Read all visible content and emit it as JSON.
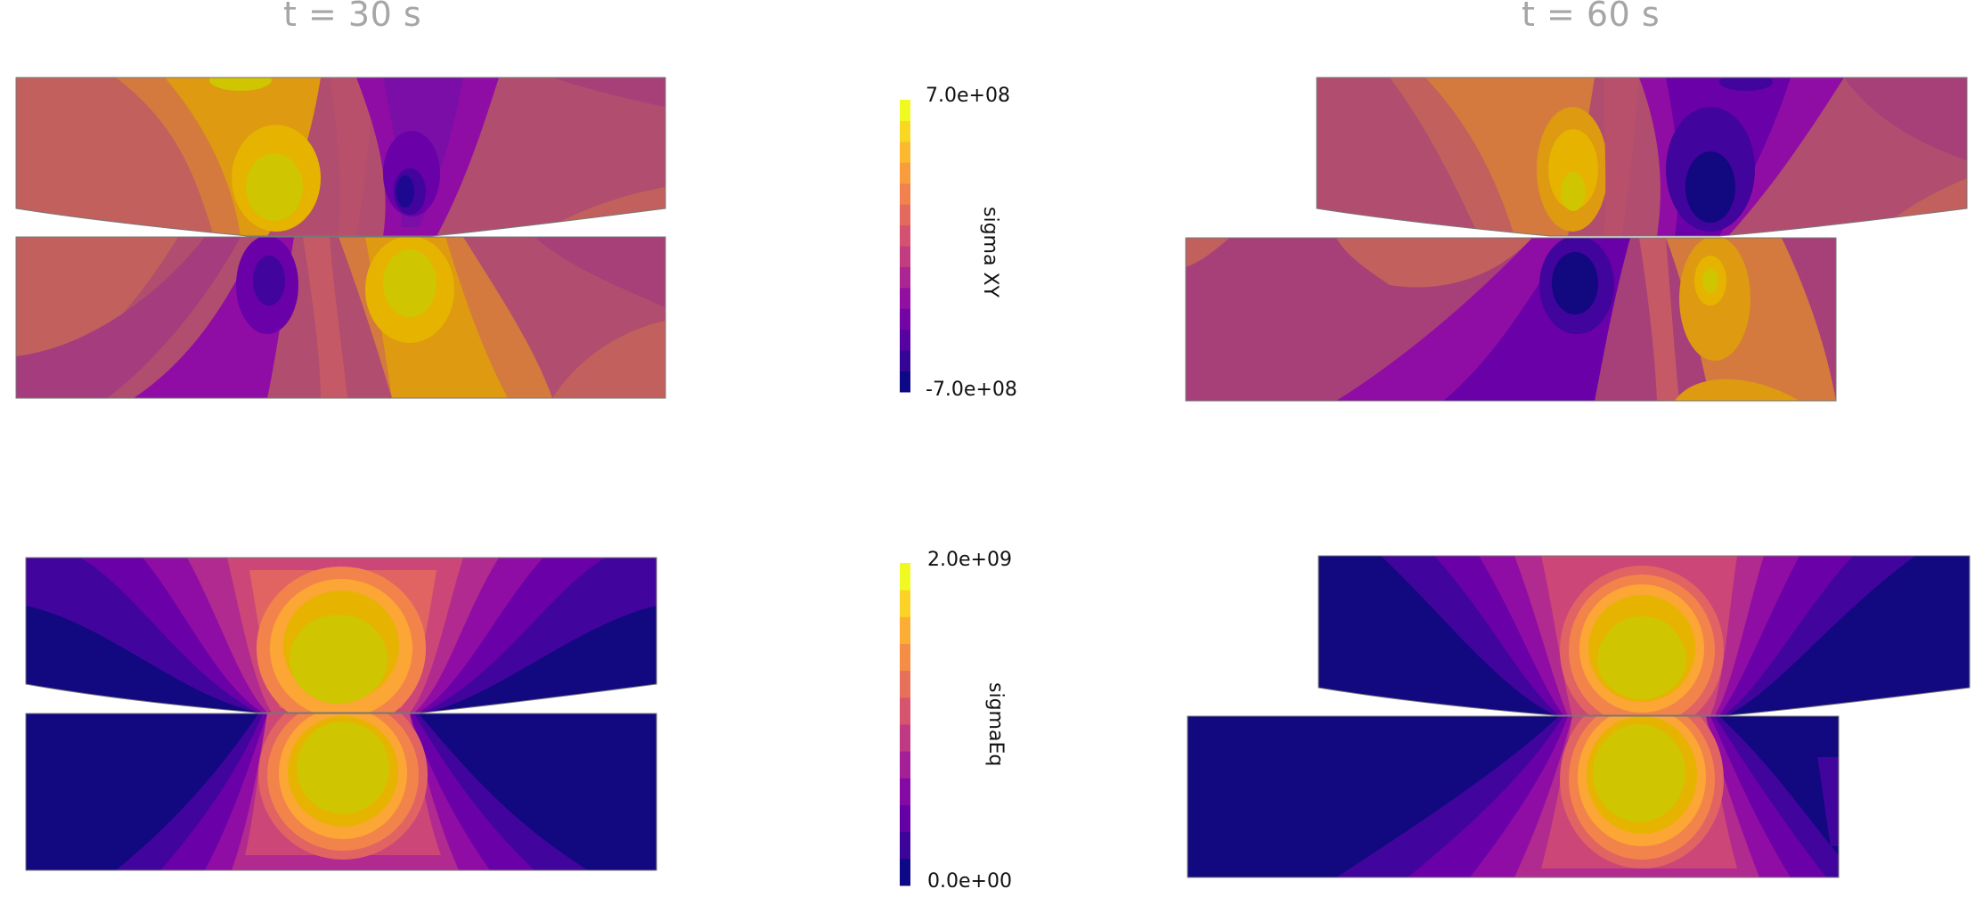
{
  "time_labels": {
    "left": "t = 30 s",
    "right": "t = 60 s"
  },
  "colorbars": {
    "top": {
      "title": "sigma XY",
      "max": "7.0e+08",
      "min": "-7.0e+08",
      "levels": 14
    },
    "bottom": {
      "title": "sigmaEq",
      "max": "2.0e+09",
      "min": "0.0e+00",
      "levels": 12
    }
  },
  "colormap": [
    "#0d0887",
    "#41049d",
    "#6a00a8",
    "#8f0da4",
    "#b12a90",
    "#cc4778",
    "#e16462",
    "#f2844b",
    "#fca636",
    "#fcce25",
    "#f0f921"
  ],
  "panel_fill": {
    "sigma_xy_background": "#b14d6e",
    "sigma_eq_background": "#12087f"
  }
}
